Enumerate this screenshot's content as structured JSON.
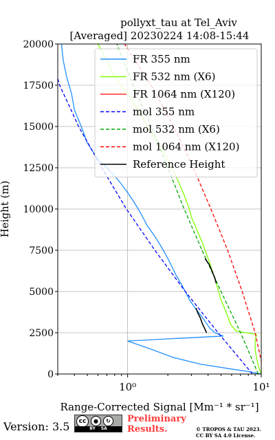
{
  "chart_data": {
    "type": "line",
    "title_line1": "pollyxt_tau at Tel_Aviv",
    "title_line2": "[Averaged] 20230224 14:08-15:44",
    "xlabel": "Range-Corrected Signal [Mm⁻¹ * sr⁻¹]",
    "ylabel": "Height (m)",
    "x_scale": "log",
    "xlim": [
      0.3,
      10
    ],
    "ylim": [
      0,
      20000
    ],
    "y_ticks": [
      0,
      2500,
      5000,
      7500,
      10000,
      12500,
      15000,
      17500,
      20000
    ],
    "y_tick_labels": [
      "0",
      "2500",
      "5000",
      "7500",
      "10000",
      "12500",
      "15000",
      "17500",
      "20000"
    ],
    "x_ticks": [
      1,
      10
    ],
    "x_tick_labels": [
      "10⁰",
      "10¹"
    ],
    "grid": true,
    "legend_position": "top-right",
    "series": [
      {
        "name": "FR 355 nm",
        "color": "#1f8fff",
        "style": "solid",
        "y": [
          0,
          150,
          300,
          600,
          1000,
          1500,
          2000,
          2300,
          2500,
          2800,
          3200,
          3600,
          4000,
          4500,
          5000,
          5500,
          6000,
          6500,
          7000,
          7500,
          8000,
          8500,
          9000,
          9500,
          10000,
          10500,
          11000,
          11500,
          12000,
          12500,
          13000,
          14000,
          15000,
          16000,
          17000,
          18000,
          19000,
          20000
        ],
        "x": [
          10,
          8,
          6,
          3.5,
          2.2,
          1.5,
          1.0,
          5.2,
          4.5,
          4.1,
          3.8,
          3.5,
          3.2,
          2.9,
          2.7,
          2.5,
          2.3,
          2.15,
          2.0,
          1.85,
          1.7,
          1.55,
          1.4,
          1.3,
          1.2,
          1.1,
          1.0,
          0.9,
          0.8,
          0.7,
          0.6,
          0.5,
          0.45,
          0.4,
          0.38,
          0.35,
          0.33,
          0.32
        ]
      },
      {
        "name": "FR 532 nm (X6)",
        "color": "#7fff00",
        "style": "solid",
        "y": [
          0,
          500,
          1000,
          1500,
          2000,
          2400,
          2600,
          3000,
          3500,
          4000,
          4500,
          5000,
          5500,
          6000,
          6500,
          7000,
          7500,
          8000,
          8500,
          9000,
          9500,
          10000,
          11000,
          12000,
          13000,
          14000,
          15000,
          16000,
          17000,
          18000,
          19000,
          20000
        ],
        "x": [
          10,
          9.5,
          9.2,
          9.0,
          9.0,
          9.2,
          6.5,
          5.9,
          5.6,
          5.3,
          5.0,
          4.8,
          4.6,
          4.4,
          4.2,
          4.0,
          3.8,
          3.6,
          3.4,
          3.2,
          3.0,
          2.9,
          2.6,
          2.3,
          2.0,
          1.7,
          1.4,
          1.2,
          1.0,
          0.8,
          0.7,
          0.6
        ]
      },
      {
        "name": "FR 1064 nm (X120)",
        "color": "#ff2a2a",
        "style": "solid",
        "y": [],
        "x": []
      },
      {
        "name": "mol 355 nm",
        "color": "#0000ff",
        "style": "dashed",
        "y": [
          0,
          2500,
          5000,
          7500,
          10000,
          12500,
          15000,
          17500,
          17900
        ],
        "x": [
          8.6,
          4.75,
          2.7,
          1.6,
          0.98,
          0.64,
          0.43,
          0.31,
          0.3
        ]
      },
      {
        "name": "mol 532 nm (X6)",
        "color": "#00aa00",
        "style": "dashed",
        "y": [
          0,
          2500,
          5000,
          7500,
          10000,
          12500,
          15000,
          17500,
          20000
        ],
        "x": [
          9.5,
          7.0,
          5.0,
          3.6,
          2.65,
          2.0,
          1.5,
          1.1,
          0.83
        ]
      },
      {
        "name": "mol 1064 nm (X120)",
        "color": "#ff0000",
        "style": "dashed",
        "y": [
          0,
          2500,
          5000,
          7500,
          10000,
          12500,
          15000,
          17500,
          20000
        ],
        "x": [
          10.5,
          9.0,
          7.2,
          5.6,
          4.2,
          3.1,
          2.2,
          1.5,
          0.95
        ]
      },
      {
        "name": "Reference Height",
        "color": "#000000",
        "style": "solid",
        "segments": [
          {
            "y": [
              2500,
              2800,
              3100,
              3400,
              3700,
              4000
            ],
            "x": [
              3.9,
              3.75,
              3.6,
              3.5,
              3.35,
              3.25
            ]
          },
          {
            "y": [
              5500,
              5800,
              6200,
              6600,
              7000
            ],
            "x": [
              4.6,
              4.5,
              4.3,
              4.1,
              3.8
            ]
          }
        ]
      }
    ]
  },
  "footer": {
    "version": "Version: 3.5",
    "cc_icon_label": "cc",
    "by_label": "BY",
    "sa_label": "SA",
    "preliminary_line1": "Preliminary",
    "preliminary_line2": "Results.",
    "copyright_line1": "© TROPOS & TAU 2023.",
    "copyright_line2": "CC BY SA 4.0 License."
  }
}
